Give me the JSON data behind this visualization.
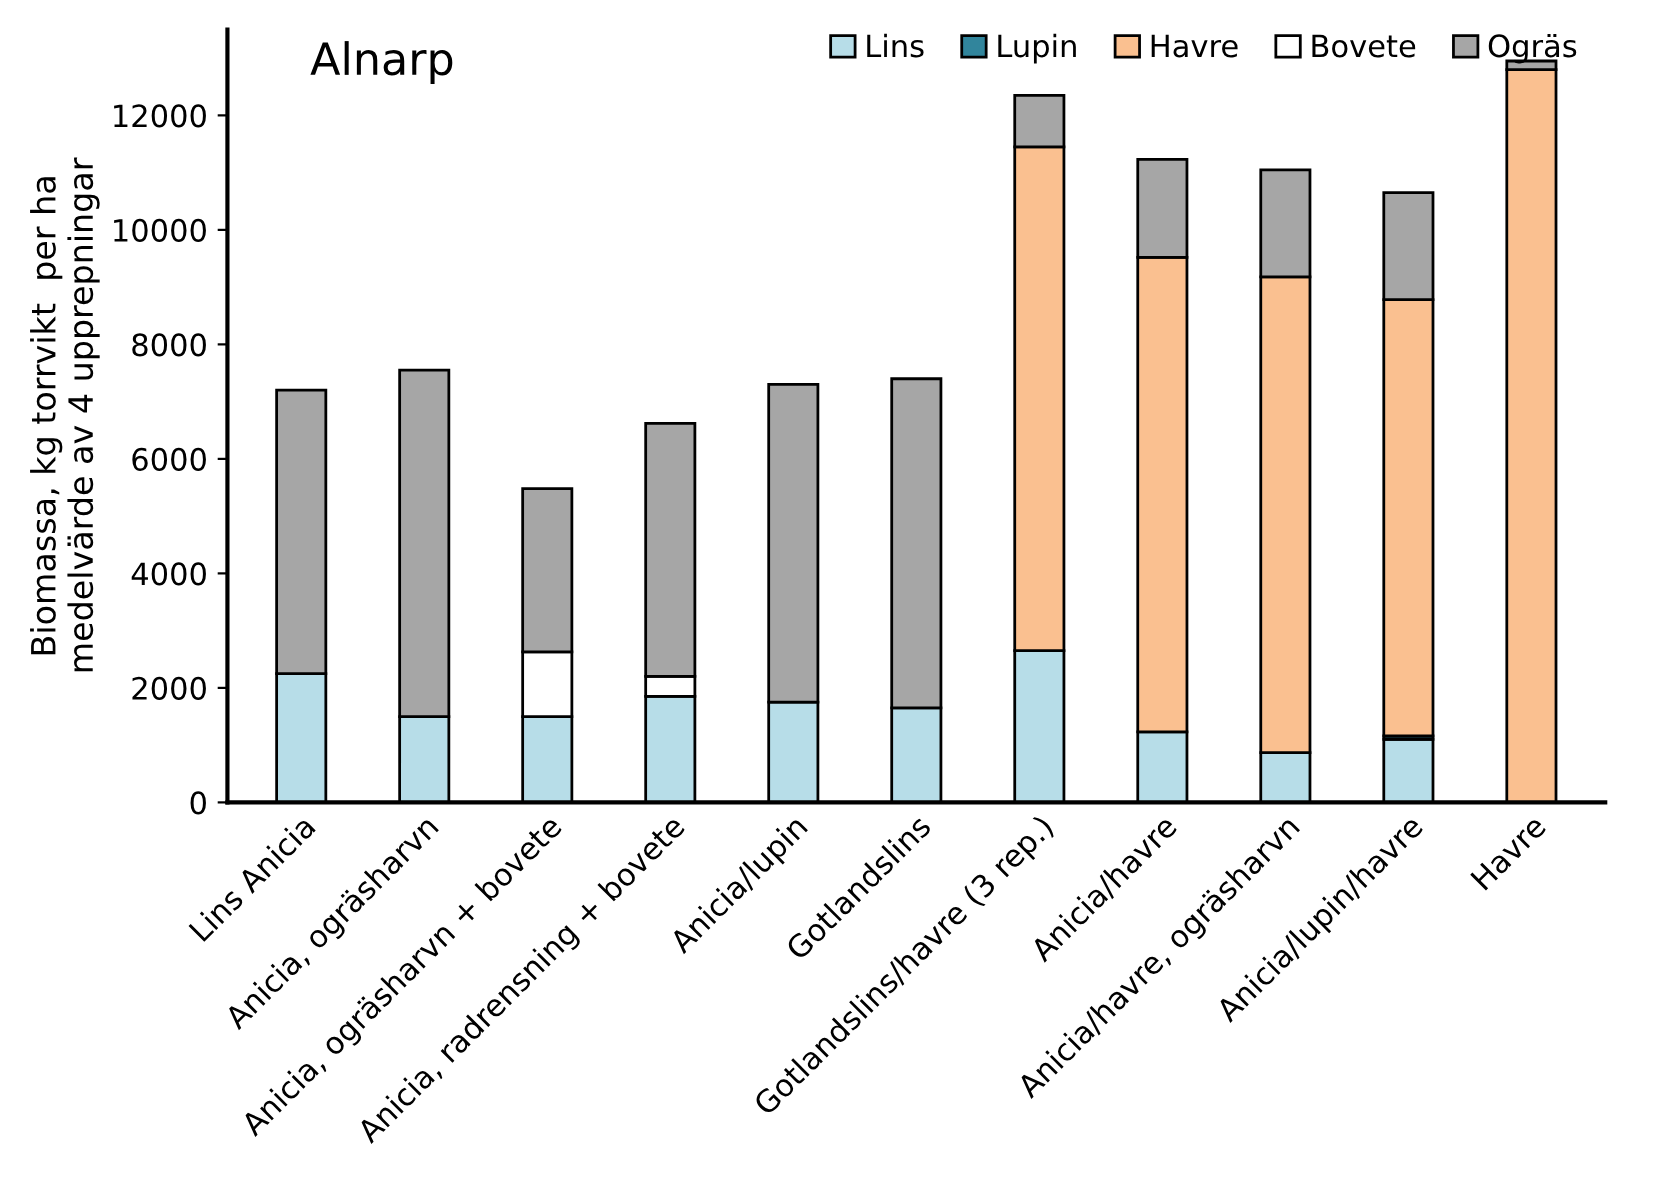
{
  "chart_data": {
    "type": "bar",
    "stacked": true,
    "title": "Alnarp",
    "ylabel": "Biomassa, kg torrvikt  per ha\nmedelvärde av 4 upprepningar",
    "categories": [
      "Lins Anicia",
      "Anicia, ogräsharvn",
      "Anicia, ogräsharvn + bovete",
      "Anicia, radrensning + bovete",
      "Anicia/lupin",
      "Gotlandslins",
      "Gotlandslins/havre (3 rep.)",
      "Anicia/havre",
      "Anicia/havre, ogräsharvn",
      "Anicia/lupin/havre",
      "Havre"
    ],
    "series": [
      {
        "name": "Lins",
        "color": "#b7dde8",
        "values": [
          2250,
          1500,
          1500,
          1850,
          1750,
          1650,
          2650,
          1230,
          870,
          1100,
          0
        ]
      },
      {
        "name": "Lupin",
        "color": "#31859c",
        "values": [
          0,
          0,
          0,
          0,
          0,
          0,
          0,
          0,
          0,
          60,
          0
        ]
      },
      {
        "name": "Havre",
        "color": "#fac090",
        "values": [
          0,
          0,
          0,
          0,
          0,
          0,
          8800,
          8290,
          8310,
          7620,
          12800
        ]
      },
      {
        "name": "Bovete",
        "color": "#ffffff",
        "values": [
          0,
          0,
          1130,
          350,
          0,
          0,
          0,
          0,
          0,
          0,
          0
        ]
      },
      {
        "name": "Ogräs",
        "color": "#a6a6a6",
        "values": [
          4950,
          6050,
          2850,
          4420,
          5550,
          5750,
          900,
          1710,
          1870,
          1870,
          150
        ]
      }
    ],
    "ylim": [
      0,
      13500
    ],
    "yticks": [
      0,
      2000,
      4000,
      6000,
      8000,
      10000,
      12000
    ],
    "grid": false,
    "legend": "top"
  }
}
